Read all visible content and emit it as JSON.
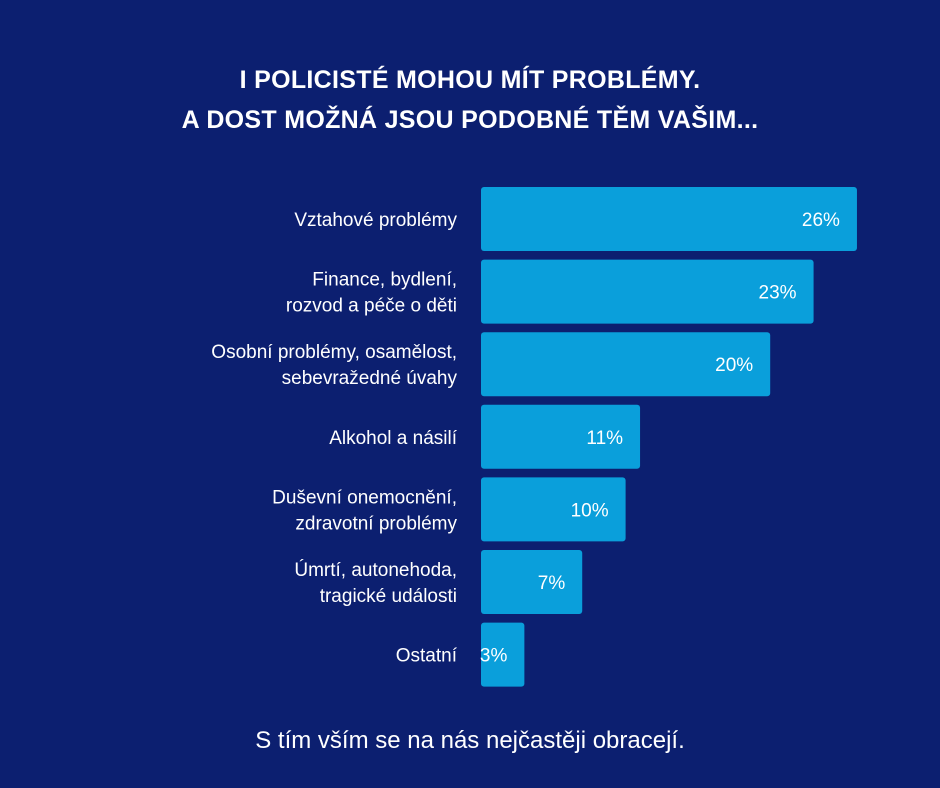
{
  "title_lines": [
    "I POLICISTÉ MOHOU MÍT PROBLÉMY.",
    "A DOST MOŽNÁ JSOU PODOBNÉ TĚM VAŠIM..."
  ],
  "footer": "S tím vším se na nás nejčastěji obracejí.",
  "colors": {
    "background": "#0c1f70",
    "bar": "#0a9fdb",
    "text": "#ffffff"
  },
  "chart_data": {
    "type": "bar",
    "orientation": "horizontal",
    "categories": [
      [
        "Vztahové problémy"
      ],
      [
        "Finance, bydlení,",
        "rozvod a péče o děti"
      ],
      [
        "Osobní problémy, osamělost,",
        "sebevražedné úvahy"
      ],
      [
        "Alkohol a násilí"
      ],
      [
        "Duševní onemocnění,",
        "zdravotní problémy"
      ],
      [
        "Úmrtí, autonehoda,",
        "tragické události"
      ],
      [
        "Ostatní"
      ]
    ],
    "values": [
      26,
      23,
      20,
      11,
      10,
      7,
      3
    ],
    "value_labels": [
      "26%",
      "23%",
      "20%",
      "11%",
      "10%",
      "7%",
      "3%"
    ],
    "unit": "%",
    "grid": false,
    "legend": false
  }
}
